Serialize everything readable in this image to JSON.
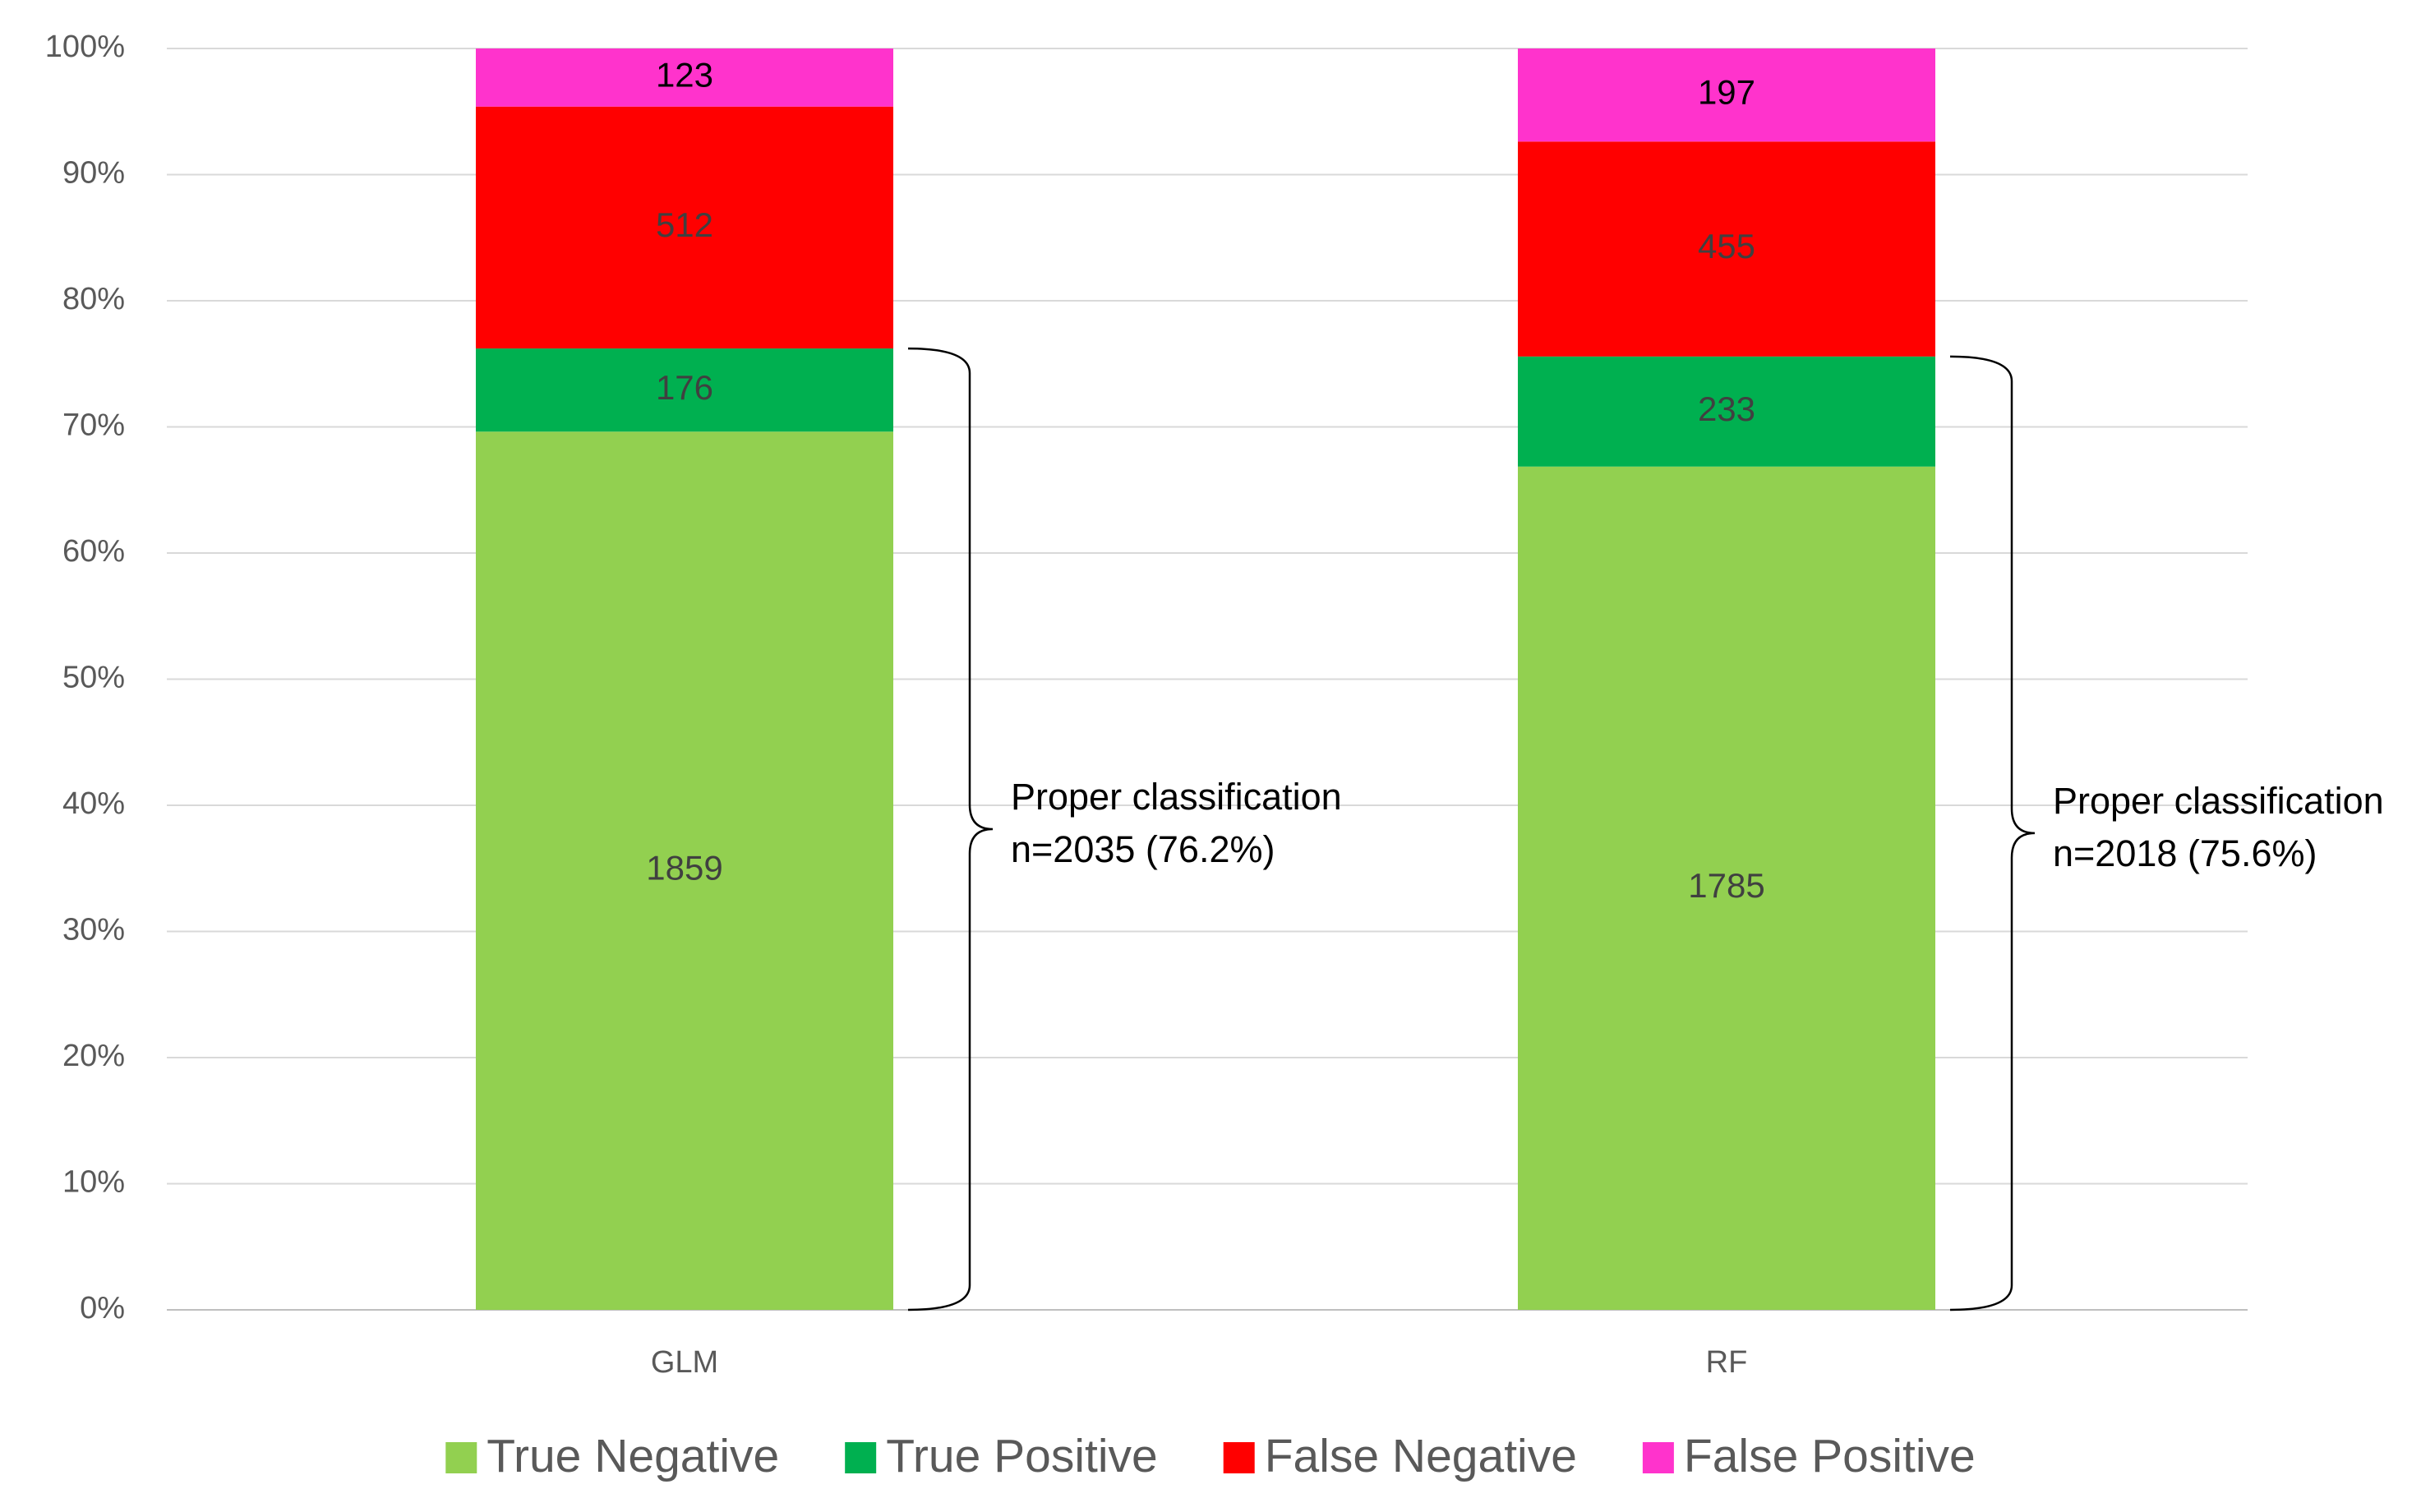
{
  "chart_data": {
    "type": "bar",
    "stacked": "percent",
    "categories": [
      "GLM",
      "RF"
    ],
    "series": [
      {
        "name": "True Negative",
        "color": "#92d050",
        "values": [
          1859,
          1785
        ]
      },
      {
        "name": "True Positive",
        "color": "#00b050",
        "values": [
          176,
          233
        ]
      },
      {
        "name": "False Negative",
        "color": "#ff0000",
        "values": [
          512,
          455
        ]
      },
      {
        "name": "False Positive",
        "color": "#ff33cc",
        "values": [
          123,
          197
        ]
      }
    ],
    "ylim": [
      0,
      100
    ],
    "yticks": [
      {
        "value": 0,
        "label": "0%"
      },
      {
        "value": 10,
        "label": "10%"
      },
      {
        "value": 20,
        "label": "20%"
      },
      {
        "value": 30,
        "label": "30%"
      },
      {
        "value": 40,
        "label": "40%"
      },
      {
        "value": 50,
        "label": "50%"
      },
      {
        "value": 60,
        "label": "60%"
      },
      {
        "value": 70,
        "label": "70%"
      },
      {
        "value": 80,
        "label": "80%"
      },
      {
        "value": 90,
        "label": "90%"
      },
      {
        "value": 100,
        "label": "100%"
      }
    ],
    "grid": true,
    "legend": "bottom",
    "annotations": [
      [
        "Proper classification",
        "n=2035 (76.2%)"
      ],
      [
        "Proper classification",
        "n=2018 (75.6%)"
      ]
    ]
  }
}
